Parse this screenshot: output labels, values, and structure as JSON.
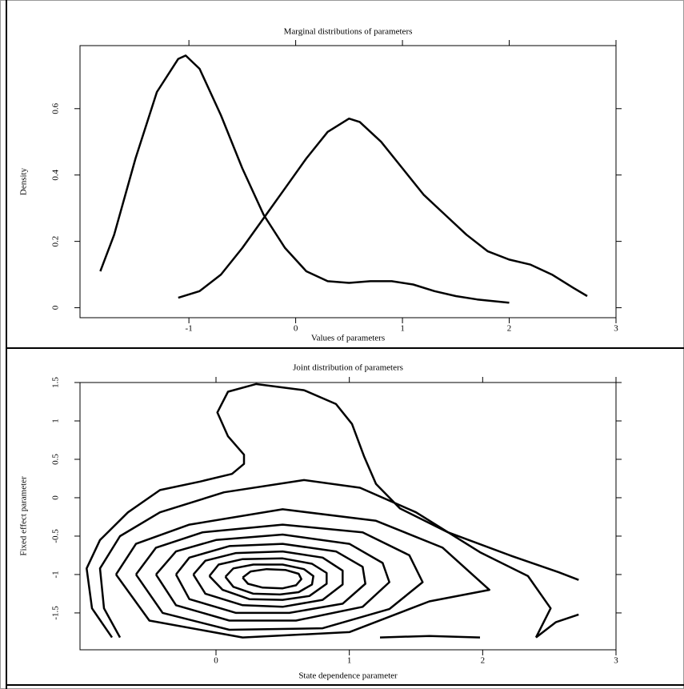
{
  "chart_data": [
    {
      "type": "line",
      "title": "Marginal distributions of parameters",
      "x_label": "Values of parameters",
      "y_label": "Density",
      "color": "#000000",
      "xlim": [
        -2.02,
        3
      ],
      "ylim": [
        -0.03,
        0.79
      ],
      "xticks": [
        -1,
        0,
        1,
        2,
        3
      ],
      "yticks": [
        0,
        0.2,
        0.4,
        0.6
      ],
      "series": [
        {
          "x": [
            -1.83,
            -1.7,
            -1.5,
            -1.3,
            -1.1,
            -1.03,
            -0.9,
            -0.7,
            -0.5,
            -0.3,
            -0.1,
            0.1,
            0.3,
            0.5,
            0.7,
            0.9,
            1.1,
            1.3,
            1.5,
            1.7,
            2.0
          ],
          "values": [
            0.11,
            0.22,
            0.45,
            0.65,
            0.75,
            0.76,
            0.72,
            0.58,
            0.42,
            0.28,
            0.18,
            0.11,
            0.08,
            0.075,
            0.08,
            0.08,
            0.07,
            0.05,
            0.035,
            0.025,
            0.015
          ]
        },
        {
          "x": [
            -1.1,
            -0.9,
            -0.7,
            -0.5,
            -0.3,
            -0.1,
            0.1,
            0.3,
            0.5,
            0.6,
            0.8,
            1.0,
            1.2,
            1.4,
            1.6,
            1.8,
            2.0,
            2.2,
            2.4,
            2.6,
            2.73
          ],
          "values": [
            0.03,
            0.05,
            0.1,
            0.18,
            0.27,
            0.36,
            0.45,
            0.53,
            0.57,
            0.56,
            0.5,
            0.42,
            0.34,
            0.28,
            0.22,
            0.17,
            0.145,
            0.13,
            0.1,
            0.06,
            0.035
          ]
        }
      ]
    },
    {
      "type": "contour",
      "title": "Joint distribution of parameters",
      "x_label": "State dependence parameter",
      "y_label": "Fixed effect parameter",
      "color": "#000000",
      "xlim": [
        -1.02,
        3
      ],
      "ylim": [
        -1.98,
        1.5
      ],
      "xticks": [
        0,
        1,
        2,
        3
      ],
      "yticks": [
        1.5,
        1,
        0.5,
        0,
        -0.5,
        -1,
        -1.5
      ],
      "series": [
        {
          "x": [
            -0.78,
            -0.93,
            -0.97,
            -0.87,
            -0.66,
            -0.42,
            -0.12,
            0.12,
            0.21,
            0.21,
            0.09,
            0.01,
            0.09,
            0.3,
            0.66,
            0.9,
            1.02,
            1.11,
            1.2,
            1.38,
            1.74,
            2.22,
            2.57,
            2.72
          ],
          "values": [
            -1.82,
            -1.44,
            -0.92,
            -0.55,
            -0.19,
            0.1,
            0.21,
            0.31,
            0.44,
            0.56,
            0.8,
            1.11,
            1.38,
            1.48,
            1.4,
            1.22,
            0.96,
            0.54,
            0.18,
            -0.14,
            -0.45,
            -0.76,
            -0.97,
            -1.07
          ]
        },
        {
          "x": [
            -0.72,
            -0.84,
            -0.87,
            -0.72,
            -0.42,
            0.06,
            0.66,
            1.08,
            1.5,
            1.98,
            2.34,
            2.51,
            2.4
          ],
          "values": [
            -1.82,
            -1.44,
            -0.92,
            -0.5,
            -0.19,
            0.07,
            0.23,
            0.13,
            -0.19,
            -0.71,
            -1.02,
            -1.44,
            -1.82
          ]
        },
        {
          "x": [
            -0.75,
            -0.6,
            -0.2,
            0.5,
            1.2,
            1.7,
            2.05,
            1.6,
            1.0,
            0.2,
            -0.5,
            -0.75
          ],
          "values": [
            -1.0,
            -0.6,
            -0.35,
            -0.15,
            -0.3,
            -0.65,
            -1.2,
            -1.35,
            -1.75,
            -1.82,
            -1.6,
            -1.0
          ]
        },
        {
          "x": [
            -0.6,
            -0.45,
            -0.1,
            0.5,
            1.1,
            1.45,
            1.55,
            1.3,
            0.8,
            0.1,
            -0.4,
            -0.6
          ],
          "values": [
            -1.0,
            -0.65,
            -0.45,
            -0.35,
            -0.45,
            -0.75,
            -1.1,
            -1.45,
            -1.7,
            -1.72,
            -1.5,
            -1.0
          ]
        },
        {
          "x": [
            -0.45,
            -0.3,
            0.0,
            0.5,
            1.0,
            1.25,
            1.3,
            1.1,
            0.6,
            0.1,
            -0.3,
            -0.45
          ],
          "values": [
            -1.0,
            -0.7,
            -0.55,
            -0.48,
            -0.6,
            -0.85,
            -1.1,
            -1.42,
            -1.6,
            -1.6,
            -1.4,
            -1.0
          ]
        },
        {
          "x": [
            -0.3,
            -0.2,
            0.1,
            0.5,
            0.9,
            1.1,
            1.12,
            0.95,
            0.55,
            0.15,
            -0.2,
            -0.3
          ],
          "values": [
            -1.0,
            -0.78,
            -0.63,
            -0.6,
            -0.7,
            -0.9,
            -1.12,
            -1.38,
            -1.5,
            -1.5,
            -1.32,
            -1.0
          ]
        },
        {
          "x": [
            -0.17,
            -0.08,
            0.15,
            0.5,
            0.8,
            0.95,
            0.95,
            0.8,
            0.5,
            0.2,
            -0.08,
            -0.17
          ],
          "values": [
            -1.0,
            -0.82,
            -0.72,
            -0.7,
            -0.78,
            -0.95,
            -1.13,
            -1.33,
            -1.42,
            -1.4,
            -1.25,
            -1.0
          ]
        },
        {
          "x": [
            -0.05,
            0.02,
            0.2,
            0.5,
            0.72,
            0.83,
            0.83,
            0.7,
            0.5,
            0.25,
            0.05,
            -0.05
          ],
          "values": [
            -1.02,
            -0.87,
            -0.8,
            -0.79,
            -0.86,
            -0.98,
            -1.12,
            -1.28,
            -1.33,
            -1.32,
            -1.2,
            -1.02
          ]
        },
        {
          "x": [
            0.07,
            0.13,
            0.28,
            0.5,
            0.66,
            0.73,
            0.72,
            0.62,
            0.48,
            0.28,
            0.13,
            0.07
          ],
          "values": [
            -1.03,
            -0.92,
            -0.87,
            -0.87,
            -0.93,
            -1.02,
            -1.13,
            -1.23,
            -1.26,
            -1.25,
            -1.16,
            -1.03
          ]
        },
        {
          "x": [
            0.2,
            0.26,
            0.38,
            0.52,
            0.62,
            0.64,
            0.6,
            0.5,
            0.35,
            0.24,
            0.2
          ],
          "values": [
            -1.04,
            -0.96,
            -0.93,
            -0.94,
            -0.99,
            -1.06,
            -1.14,
            -1.18,
            -1.17,
            -1.12,
            -1.04
          ]
        },
        {
          "x": [
            1.23,
            1.6,
            1.98
          ],
          "values": [
            -1.82,
            -1.8,
            -1.82
          ]
        },
        {
          "x": [
            2.4,
            2.55,
            2.72
          ],
          "values": [
            -1.82,
            -1.62,
            -1.52
          ]
        }
      ]
    }
  ]
}
